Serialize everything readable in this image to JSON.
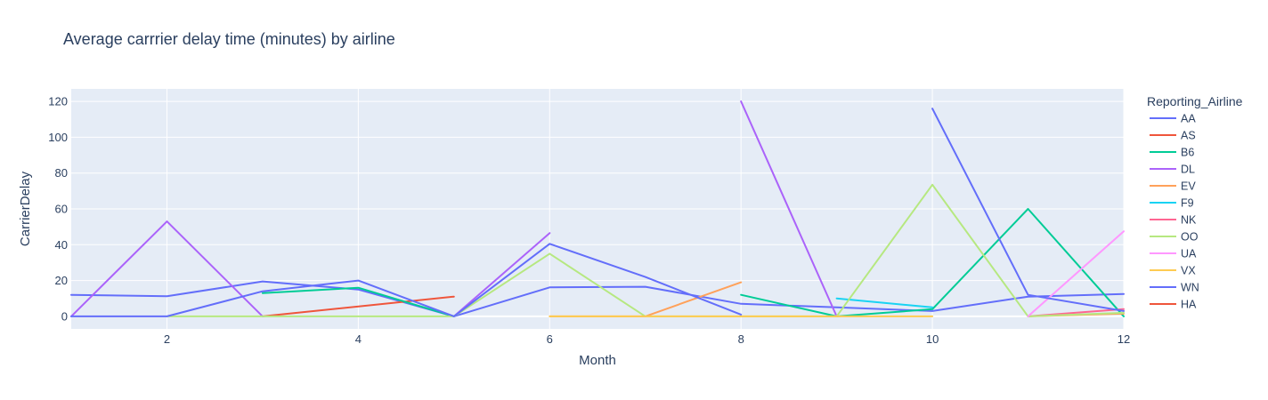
{
  "chart_data": {
    "type": "line",
    "title": "Average carrrier delay time (minutes) by airline",
    "xlabel": "Month",
    "ylabel": "CarrierDelay",
    "xlim": [
      1,
      12
    ],
    "ylim": [
      -7,
      127
    ],
    "xticks": [
      2,
      4,
      6,
      8,
      10,
      12
    ],
    "yticks": [
      0,
      20,
      40,
      60,
      80,
      100,
      120
    ],
    "grid": true,
    "legend_title": "Reporting_Airline",
    "legend_position": "right",
    "series": [
      {
        "name": "AA",
        "color": "#636efa",
        "points": [
          [
            1,
            12
          ],
          [
            2,
            11.2
          ],
          [
            3,
            19.5
          ],
          [
            4,
            15
          ],
          [
            5,
            0
          ],
          [
            6,
            16.2
          ],
          [
            7,
            16.5
          ],
          [
            8,
            7
          ],
          [
            9,
            5
          ],
          [
            10,
            3
          ],
          [
            11,
            11
          ],
          [
            12,
            12.5
          ]
        ]
      },
      {
        "name": "AS",
        "color": "#EF553B",
        "points": [
          [
            3,
            0
          ],
          [
            5,
            11
          ]
        ]
      },
      {
        "name": "B6",
        "color": "#00cc96",
        "points": [
          [
            3,
            13
          ],
          [
            4,
            16
          ],
          [
            5,
            0
          ],
          [
            null,
            null
          ],
          [
            8,
            12
          ],
          [
            9,
            0
          ],
          [
            10,
            4
          ],
          [
            11,
            60
          ],
          [
            12,
            0
          ]
        ]
      },
      {
        "name": "DL",
        "color": "#ab63fa",
        "points": [
          [
            1,
            0
          ],
          [
            2,
            53
          ],
          [
            3,
            0
          ],
          [
            null,
            null
          ],
          [
            5,
            0
          ],
          [
            6,
            46.5
          ],
          [
            null,
            null
          ],
          [
            8,
            120
          ],
          [
            9,
            0
          ]
        ]
      },
      {
        "name": "EV",
        "color": "#FFA15A",
        "points": [
          [
            6,
            0
          ],
          [
            7,
            0
          ],
          [
            8,
            19
          ],
          [
            null,
            null
          ],
          [
            11,
            0
          ],
          [
            12,
            1.5
          ]
        ]
      },
      {
        "name": "F9",
        "color": "#19d3f3",
        "points": [
          [
            9,
            10
          ],
          [
            10,
            5
          ]
        ]
      },
      {
        "name": "NK",
        "color": "#FF6692",
        "points": [
          [
            11,
            0
          ],
          [
            12,
            4
          ]
        ]
      },
      {
        "name": "OO",
        "color": "#B6E880",
        "points": [
          [
            2,
            0
          ],
          [
            3,
            0
          ],
          [
            4,
            0
          ],
          [
            5,
            0
          ],
          [
            6,
            35
          ],
          [
            7,
            0
          ],
          [
            8,
            0
          ],
          [
            9,
            0
          ],
          [
            10,
            73.5
          ],
          [
            11,
            0
          ],
          [
            12,
            2
          ]
        ]
      },
      {
        "name": "UA",
        "color": "#FF97FF",
        "points": [
          [
            11,
            0
          ],
          [
            12,
            47.5
          ]
        ]
      },
      {
        "name": "VX",
        "color": "#FECB52",
        "points": [
          [
            6,
            0
          ],
          [
            7,
            0
          ],
          [
            8,
            0
          ],
          [
            9,
            0
          ],
          [
            10,
            0
          ]
        ]
      },
      {
        "name": "WN",
        "color": "#636efa",
        "points": [
          [
            1,
            0
          ],
          [
            2,
            0
          ],
          [
            3,
            14
          ],
          [
            4,
            20
          ],
          [
            5,
            0
          ],
          [
            6,
            40.5
          ],
          [
            7,
            22
          ],
          [
            8,
            1
          ],
          [
            null,
            null
          ],
          [
            10,
            116
          ],
          [
            11,
            12
          ],
          [
            12,
            3
          ]
        ]
      },
      {
        "name": "HA",
        "color": "#EF553B",
        "points": []
      }
    ]
  }
}
